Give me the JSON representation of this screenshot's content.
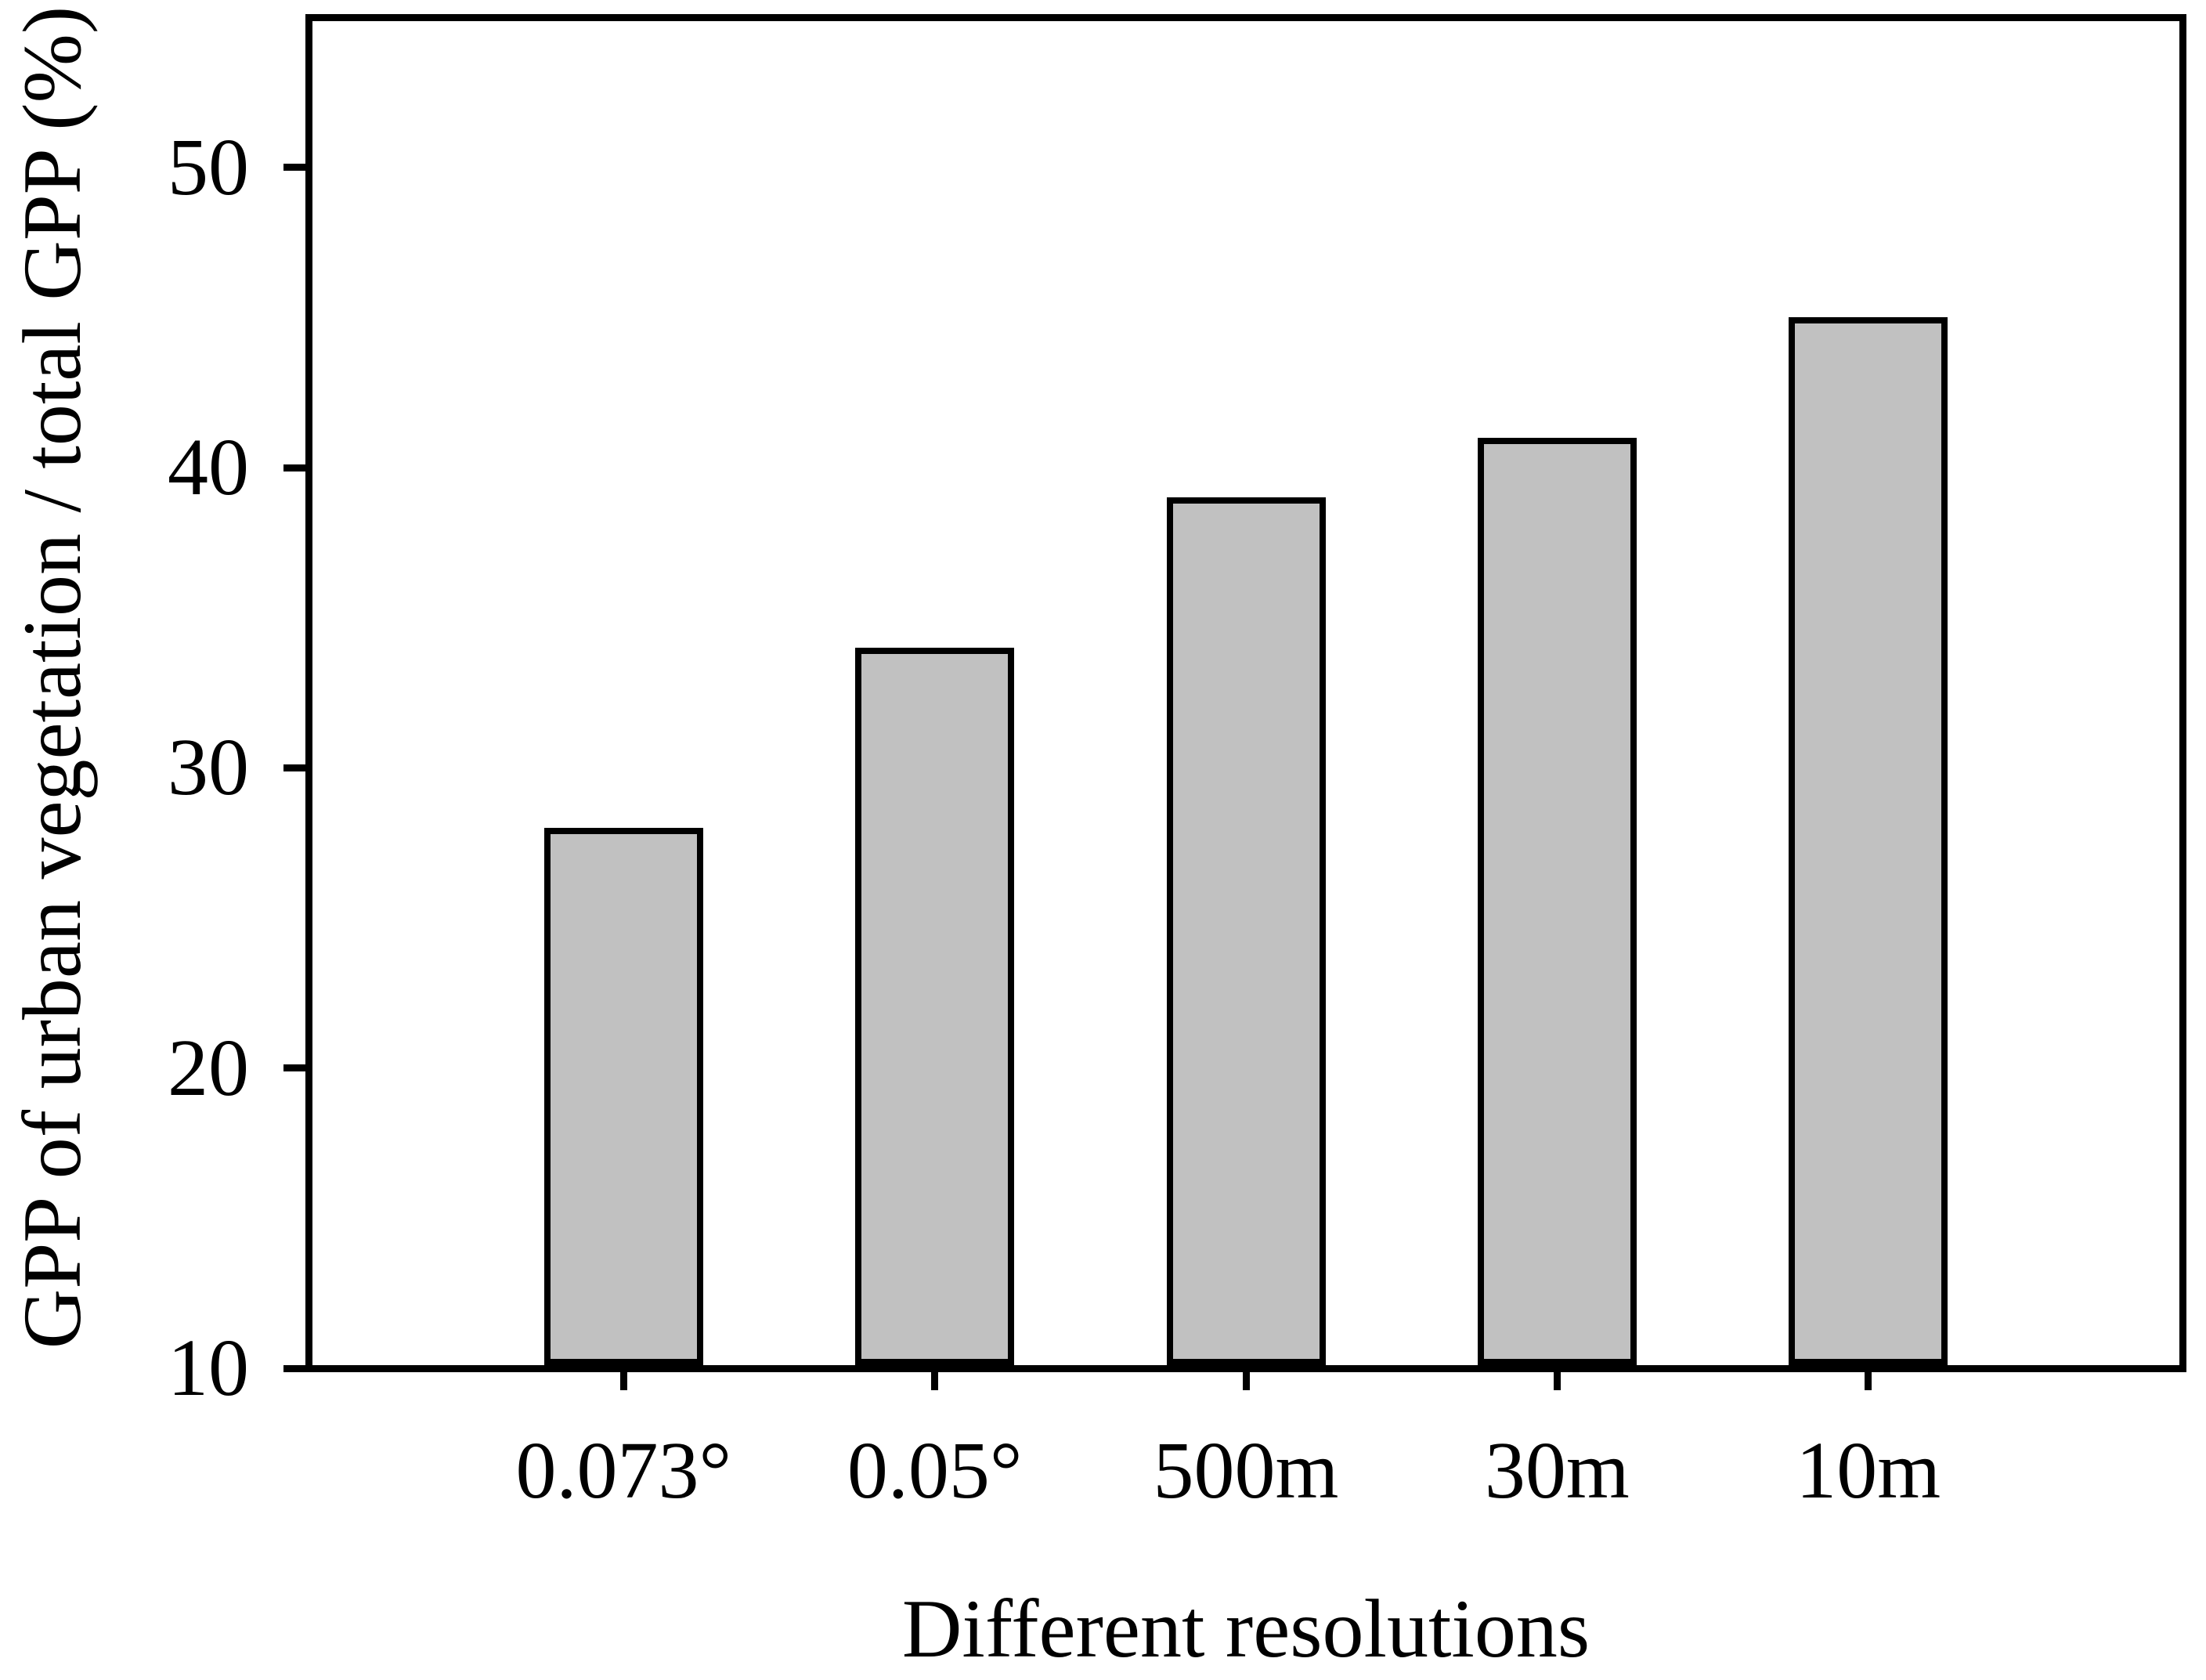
{
  "figure": {
    "xlabel": "Different resolutions",
    "ylabel": "GPP of urban vegetation / total GPP (%)"
  },
  "chart_data": {
    "type": "bar",
    "categories": [
      "0.073°",
      "0.05°",
      "500m",
      "30m",
      "10m"
    ],
    "values": [
      28,
      34,
      39,
      41,
      45
    ],
    "title": "",
    "xlabel": "Different resolutions",
    "ylabel": "GPP of urban vegetation / total GPP (%)",
    "ylim": [
      10,
      55
    ],
    "yticks": [
      10,
      20,
      30,
      40,
      50
    ],
    "grid": false,
    "legend": "none",
    "bar_fill_color": "#c1c1c1",
    "bar_border_color": "#000000",
    "axis_color": "#000000",
    "background_color": "#ffffff"
  }
}
